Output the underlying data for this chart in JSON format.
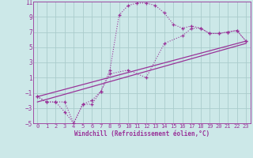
{
  "bg_color": "#cce8e8",
  "grid_color": "#aacccc",
  "line_color": "#993399",
  "xlabel": "Windchill (Refroidissement éolien,°C)",
  "xlim": [
    -0.5,
    23.5
  ],
  "ylim": [
    -5,
    11
  ],
  "xticks": [
    0,
    1,
    2,
    3,
    4,
    5,
    6,
    7,
    8,
    9,
    10,
    11,
    12,
    13,
    14,
    15,
    16,
    17,
    18,
    19,
    20,
    21,
    22,
    23
  ],
  "yticks": [
    -5,
    -3,
    -1,
    1,
    3,
    5,
    7,
    9,
    11
  ],
  "curve1_x": [
    0,
    1,
    2,
    3,
    4,
    5,
    6,
    7,
    8,
    9,
    10,
    11,
    12,
    13,
    14,
    15,
    16,
    17,
    18,
    19,
    20,
    21,
    22,
    23
  ],
  "curve1_y": [
    -1.5,
    -2.2,
    -2.2,
    -3.5,
    -5.0,
    -2.5,
    -2.0,
    -0.8,
    2.0,
    9.2,
    10.5,
    10.8,
    10.8,
    10.5,
    9.5,
    8.0,
    7.5,
    7.8,
    7.5,
    6.8,
    6.8,
    7.0,
    7.2,
    5.8
  ],
  "curve2_x": [
    0,
    1,
    2,
    3,
    4,
    5,
    6,
    7,
    8,
    10,
    12,
    14,
    16,
    17,
    18,
    19,
    20,
    21,
    22,
    23
  ],
  "curve2_y": [
    -1.5,
    -2.2,
    -2.2,
    -2.2,
    -5.0,
    -2.5,
    -2.5,
    -0.8,
    1.5,
    2.0,
    1.0,
    5.5,
    6.5,
    7.5,
    7.5,
    6.8,
    6.8,
    7.0,
    7.2,
    5.8
  ],
  "line1_x": [
    0,
    23
  ],
  "line1_y": [
    -1.5,
    5.8
  ],
  "line2_x": [
    0,
    23
  ],
  "line2_y": [
    -2.2,
    5.5
  ]
}
